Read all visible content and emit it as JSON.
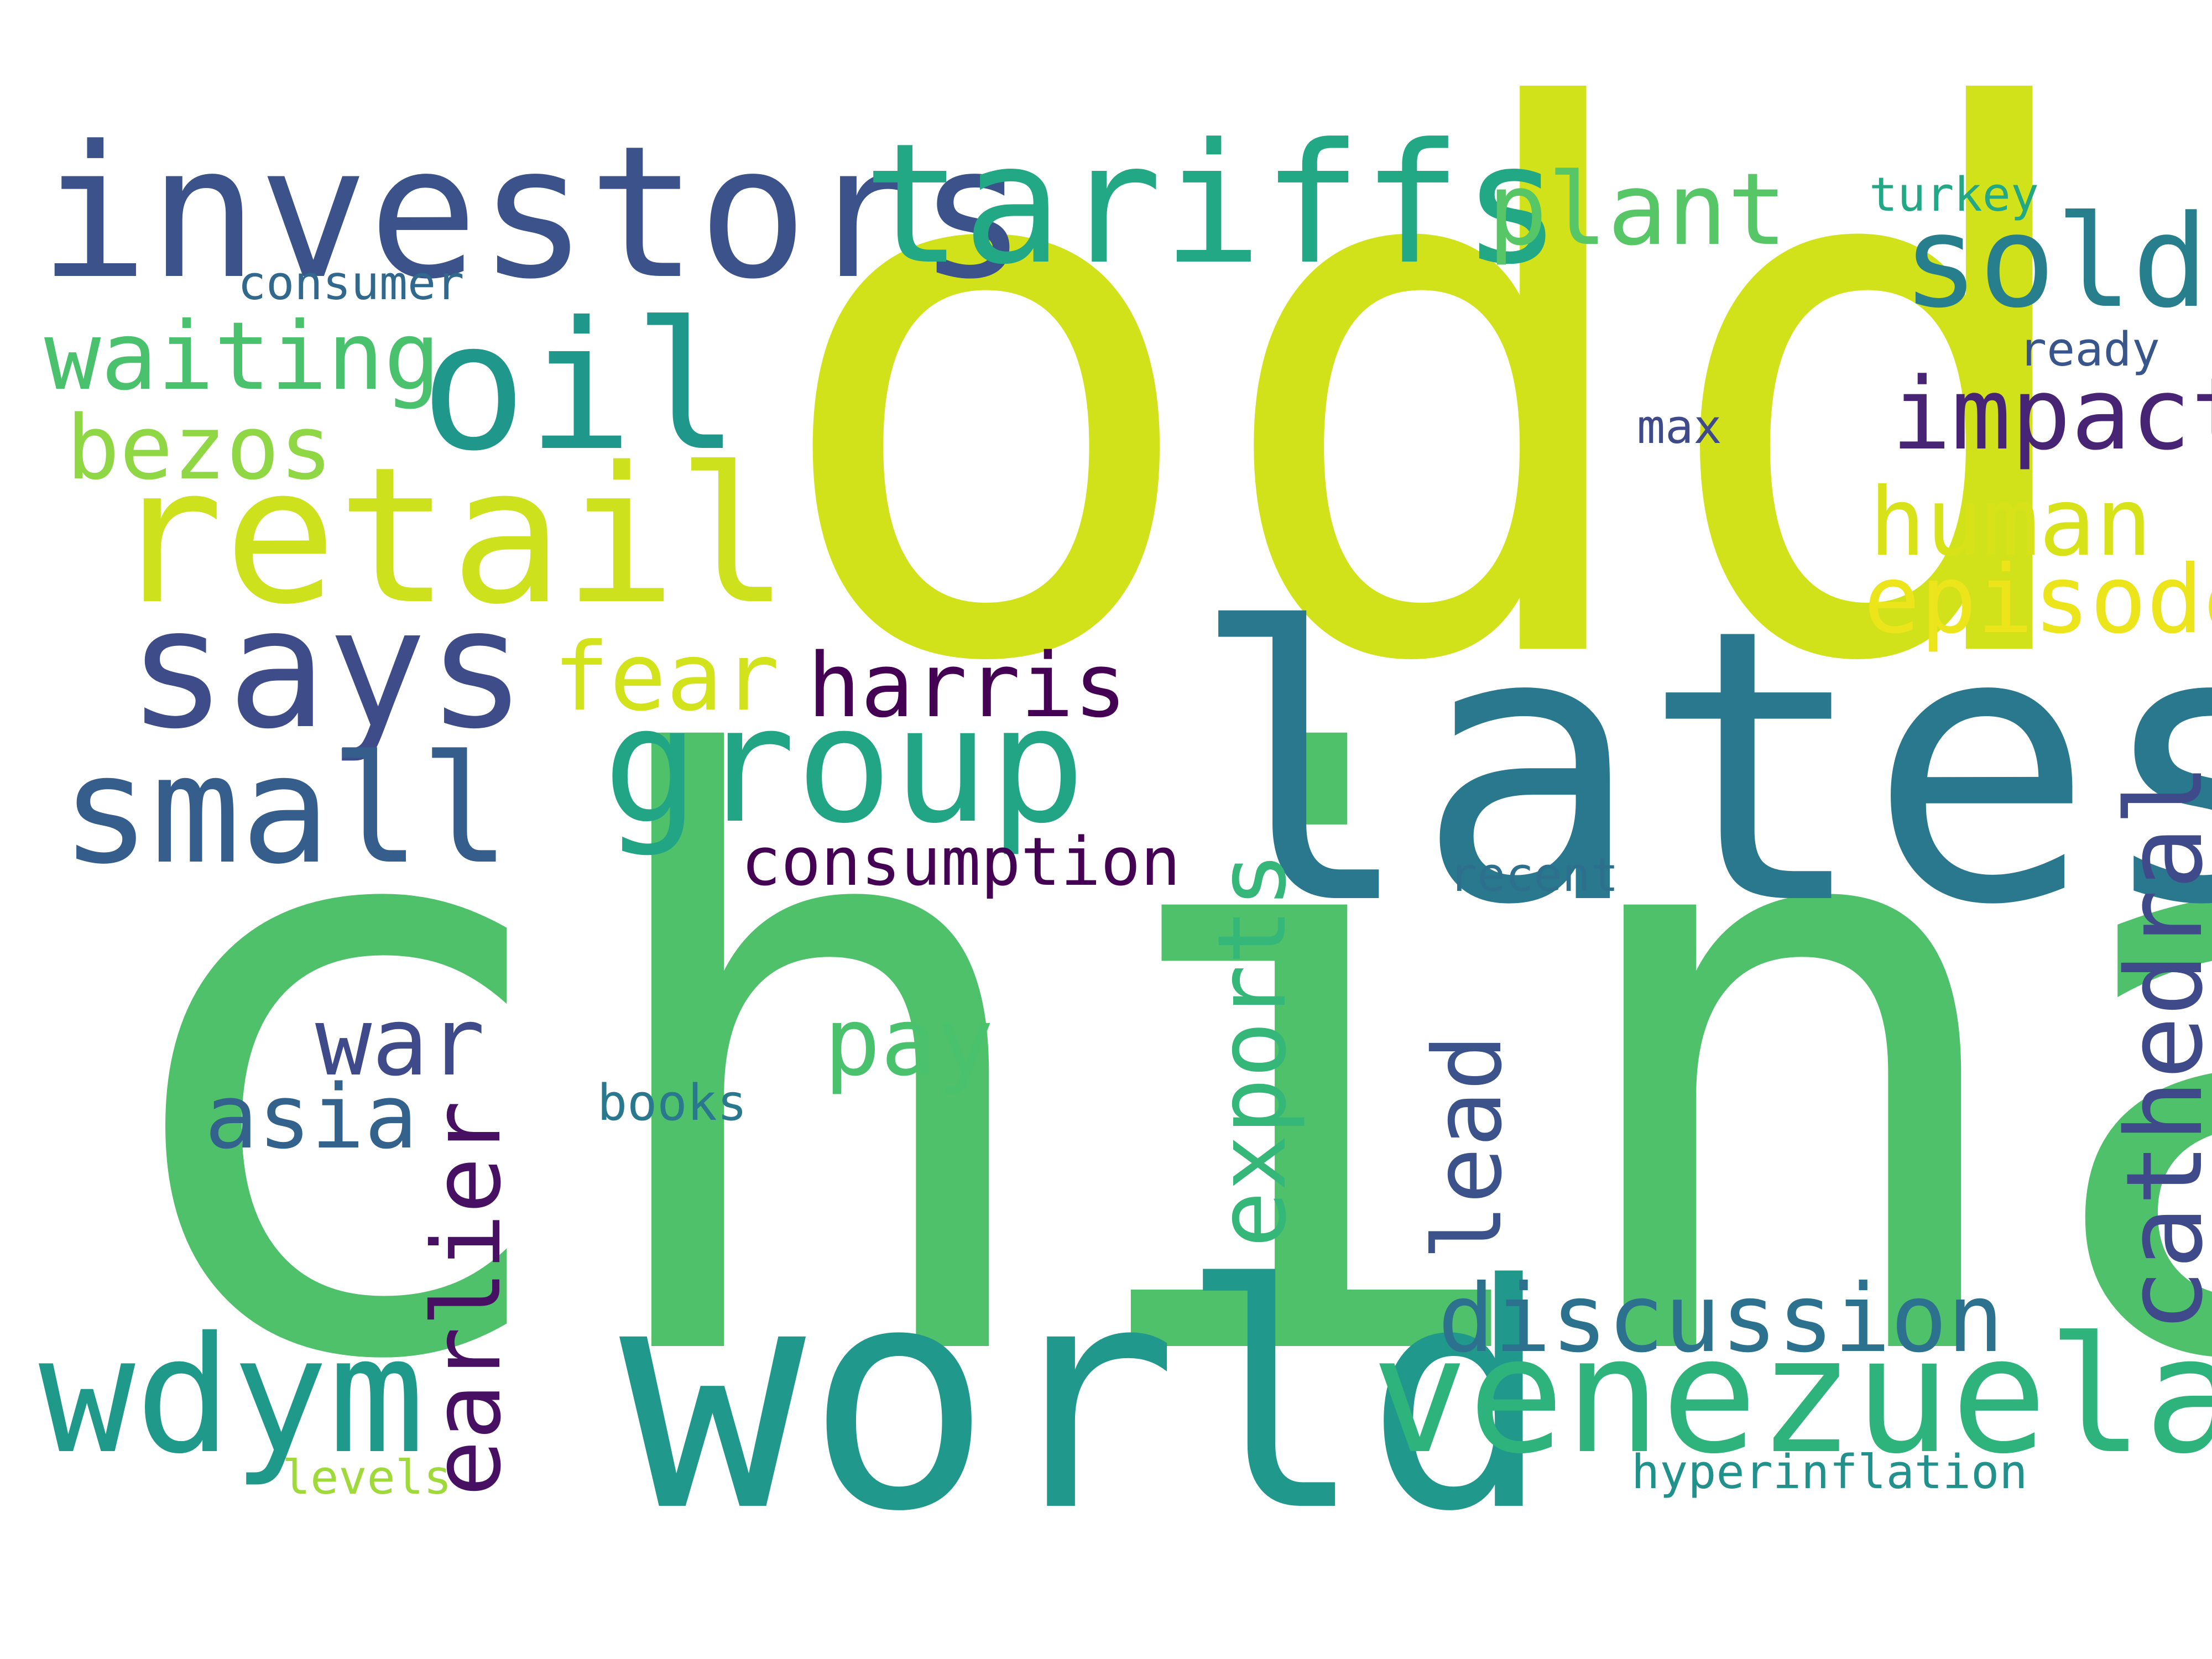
{
  "words": [
    {
      "id": "china",
      "text": "china",
      "color": "#4fc16a"
    },
    {
      "id": "odd",
      "text": "odd",
      "color": "#d1e21b"
    },
    {
      "id": "latest",
      "text": "latest",
      "color": "#2a788e"
    },
    {
      "id": "world",
      "text": "world",
      "color": "#20998c"
    },
    {
      "id": "investors",
      "text": "investors",
      "color": "#3b528b"
    },
    {
      "id": "tariffs",
      "text": "tariffs",
      "color": "#22a884"
    },
    {
      "id": "retail",
      "text": "retail",
      "color": "#cde11d"
    },
    {
      "id": "oil",
      "text": "oil",
      "color": "#1f978b"
    },
    {
      "id": "says",
      "text": "says",
      "color": "#3e4c8a"
    },
    {
      "id": "group",
      "text": "group",
      "color": "#21a585"
    },
    {
      "id": "small",
      "text": "small",
      "color": "#355e8d"
    },
    {
      "id": "venezuela",
      "text": "venezuela",
      "color": "#2eb37c"
    },
    {
      "id": "wdym",
      "text": "wdym",
      "color": "#1f9a8a"
    },
    {
      "id": "sold",
      "text": "sold",
      "color": "#277f8e"
    },
    {
      "id": "plant",
      "text": "plant",
      "color": "#56c667"
    },
    {
      "id": "impact",
      "text": "impact",
      "color": "#482475"
    },
    {
      "id": "human",
      "text": "human",
      "color": "#d8e219"
    },
    {
      "id": "episode",
      "text": "episode",
      "color": "#ece51b"
    },
    {
      "id": "waiting",
      "text": "waiting",
      "color": "#4ac16d"
    },
    {
      "id": "bezos",
      "text": "bezos",
      "color": "#8fd744"
    },
    {
      "id": "fear",
      "text": "fear",
      "color": "#d2e21b"
    },
    {
      "id": "harris",
      "text": "harris",
      "color": "#440154"
    },
    {
      "id": "discussion",
      "text": "discussion",
      "color": "#2c718e"
    },
    {
      "id": "consumption",
      "text": "consumption",
      "color": "#440154"
    },
    {
      "id": "cathedral",
      "text": "cathedral",
      "color": "#3e4a89"
    },
    {
      "id": "exports",
      "text": "exports",
      "color": "#35b779"
    },
    {
      "id": "earlier",
      "text": "earlier",
      "color": "#471063"
    },
    {
      "id": "lead",
      "text": "lead",
      "color": "#3b528b"
    },
    {
      "id": "war",
      "text": "war",
      "color": "#3e4a89"
    },
    {
      "id": "asia",
      "text": "asia",
      "color": "#33638d"
    },
    {
      "id": "pay",
      "text": "pay",
      "color": "#4ac16d"
    },
    {
      "id": "books",
      "text": "books",
      "color": "#2a788e"
    },
    {
      "id": "recent",
      "text": "recent",
      "color": "#2d708e"
    },
    {
      "id": "consumer",
      "text": "consumer",
      "color": "#31688e"
    },
    {
      "id": "turkey",
      "text": "turkey",
      "color": "#22a884"
    },
    {
      "id": "ready",
      "text": "ready",
      "color": "#39568c"
    },
    {
      "id": "max",
      "text": "max",
      "color": "#3e4a89"
    },
    {
      "id": "levels",
      "text": "levels",
      "color": "#9fda3a"
    },
    {
      "id": "hyperinflation",
      "text": "hyperinflation",
      "color": "#21918c"
    }
  ]
}
